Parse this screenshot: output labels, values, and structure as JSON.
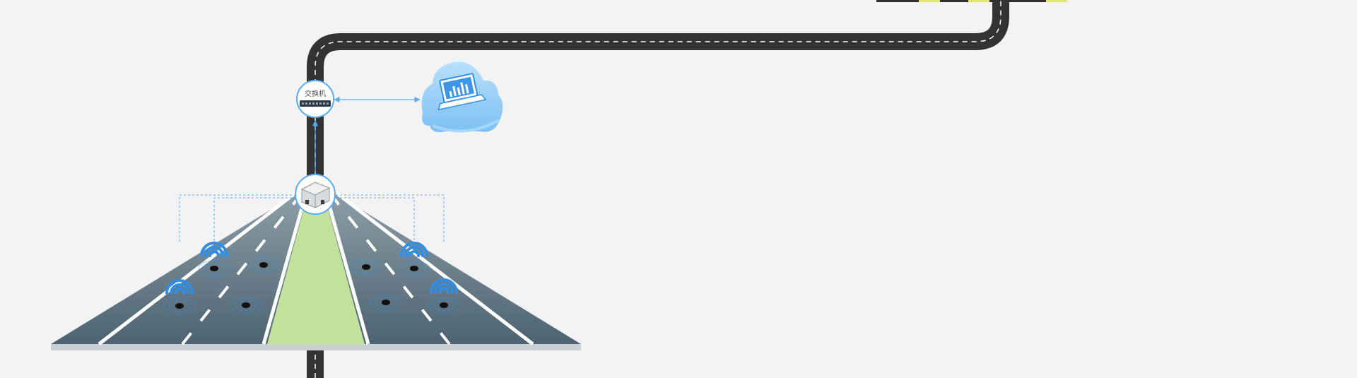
{
  "switch": {
    "label": "交换机",
    "icon": "network-switch-icon"
  },
  "cloud": {
    "icon": "cloud-laptop-icon",
    "accent": "#5aaaf0"
  },
  "gateway": {
    "icon": "sensor-gateway-icon"
  },
  "road": {
    "asphalt": "#333333",
    "lane_marking": "#ffffff",
    "median_color": "#c2e19a",
    "surface_top": "#8ea0a9",
    "surface_bottom": "#4d6371"
  },
  "sensors": {
    "count": 8,
    "wireless_icon": "wifi-signal-icon",
    "signal_color": "#2f8fe6"
  },
  "accent_color": "#5aaaf0"
}
